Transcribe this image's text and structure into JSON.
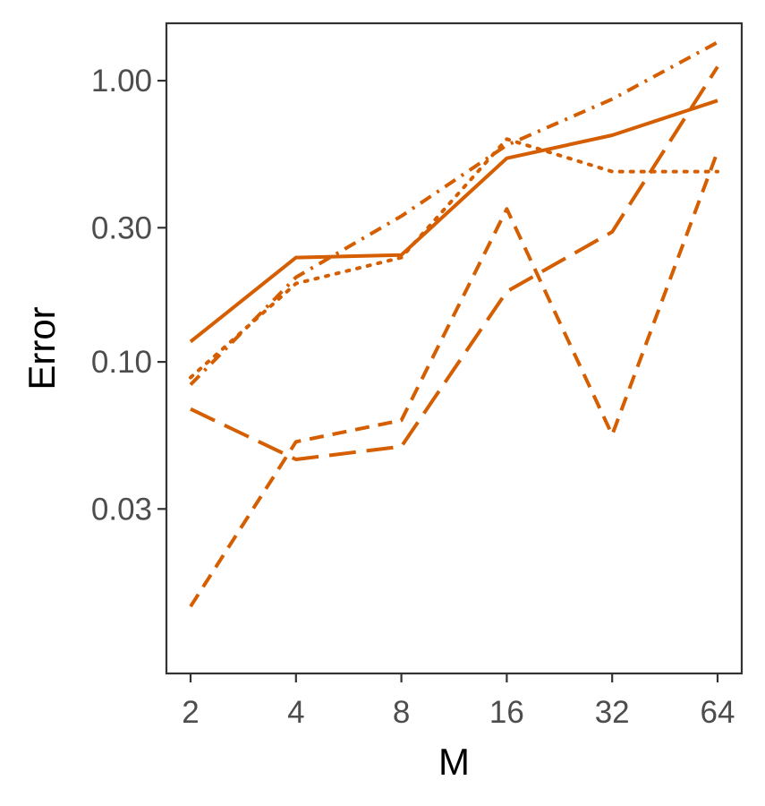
{
  "chart_data": {
    "type": "line",
    "xlabel": "M",
    "ylabel": "Error",
    "x": [
      2,
      4,
      8,
      16,
      32,
      64
    ],
    "x_tick_labels": [
      "2",
      "4",
      "8",
      "16",
      "32",
      "64"
    ],
    "x_scale": "log2",
    "y_scale": "log10",
    "ylim": [
      0.0078,
      1.6
    ],
    "y_ticks": [
      0.03,
      0.1,
      0.3,
      1.0
    ],
    "y_tick_labels": [
      "0.03",
      "0.10",
      "0.30",
      "1.00"
    ],
    "grid": false,
    "legend": "none",
    "line_color": "#D55E00",
    "series": [
      {
        "linestyle": "solid",
        "values": [
          0.118,
          0.235,
          0.24,
          0.53,
          0.64,
          0.85
        ]
      },
      {
        "linestyle": "dotted",
        "values": [
          0.088,
          0.19,
          0.235,
          0.62,
          0.475,
          0.475
        ]
      },
      {
        "linestyle": "dashdot",
        "values": [
          0.083,
          0.2,
          0.33,
          0.59,
          0.86,
          1.37
        ]
      },
      {
        "linestyle": "longdash",
        "values": [
          0.068,
          0.045,
          0.05,
          0.178,
          0.29,
          1.12
        ]
      },
      {
        "linestyle": "dash",
        "values": [
          0.0135,
          0.052,
          0.062,
          0.35,
          0.055,
          0.56
        ]
      }
    ]
  }
}
